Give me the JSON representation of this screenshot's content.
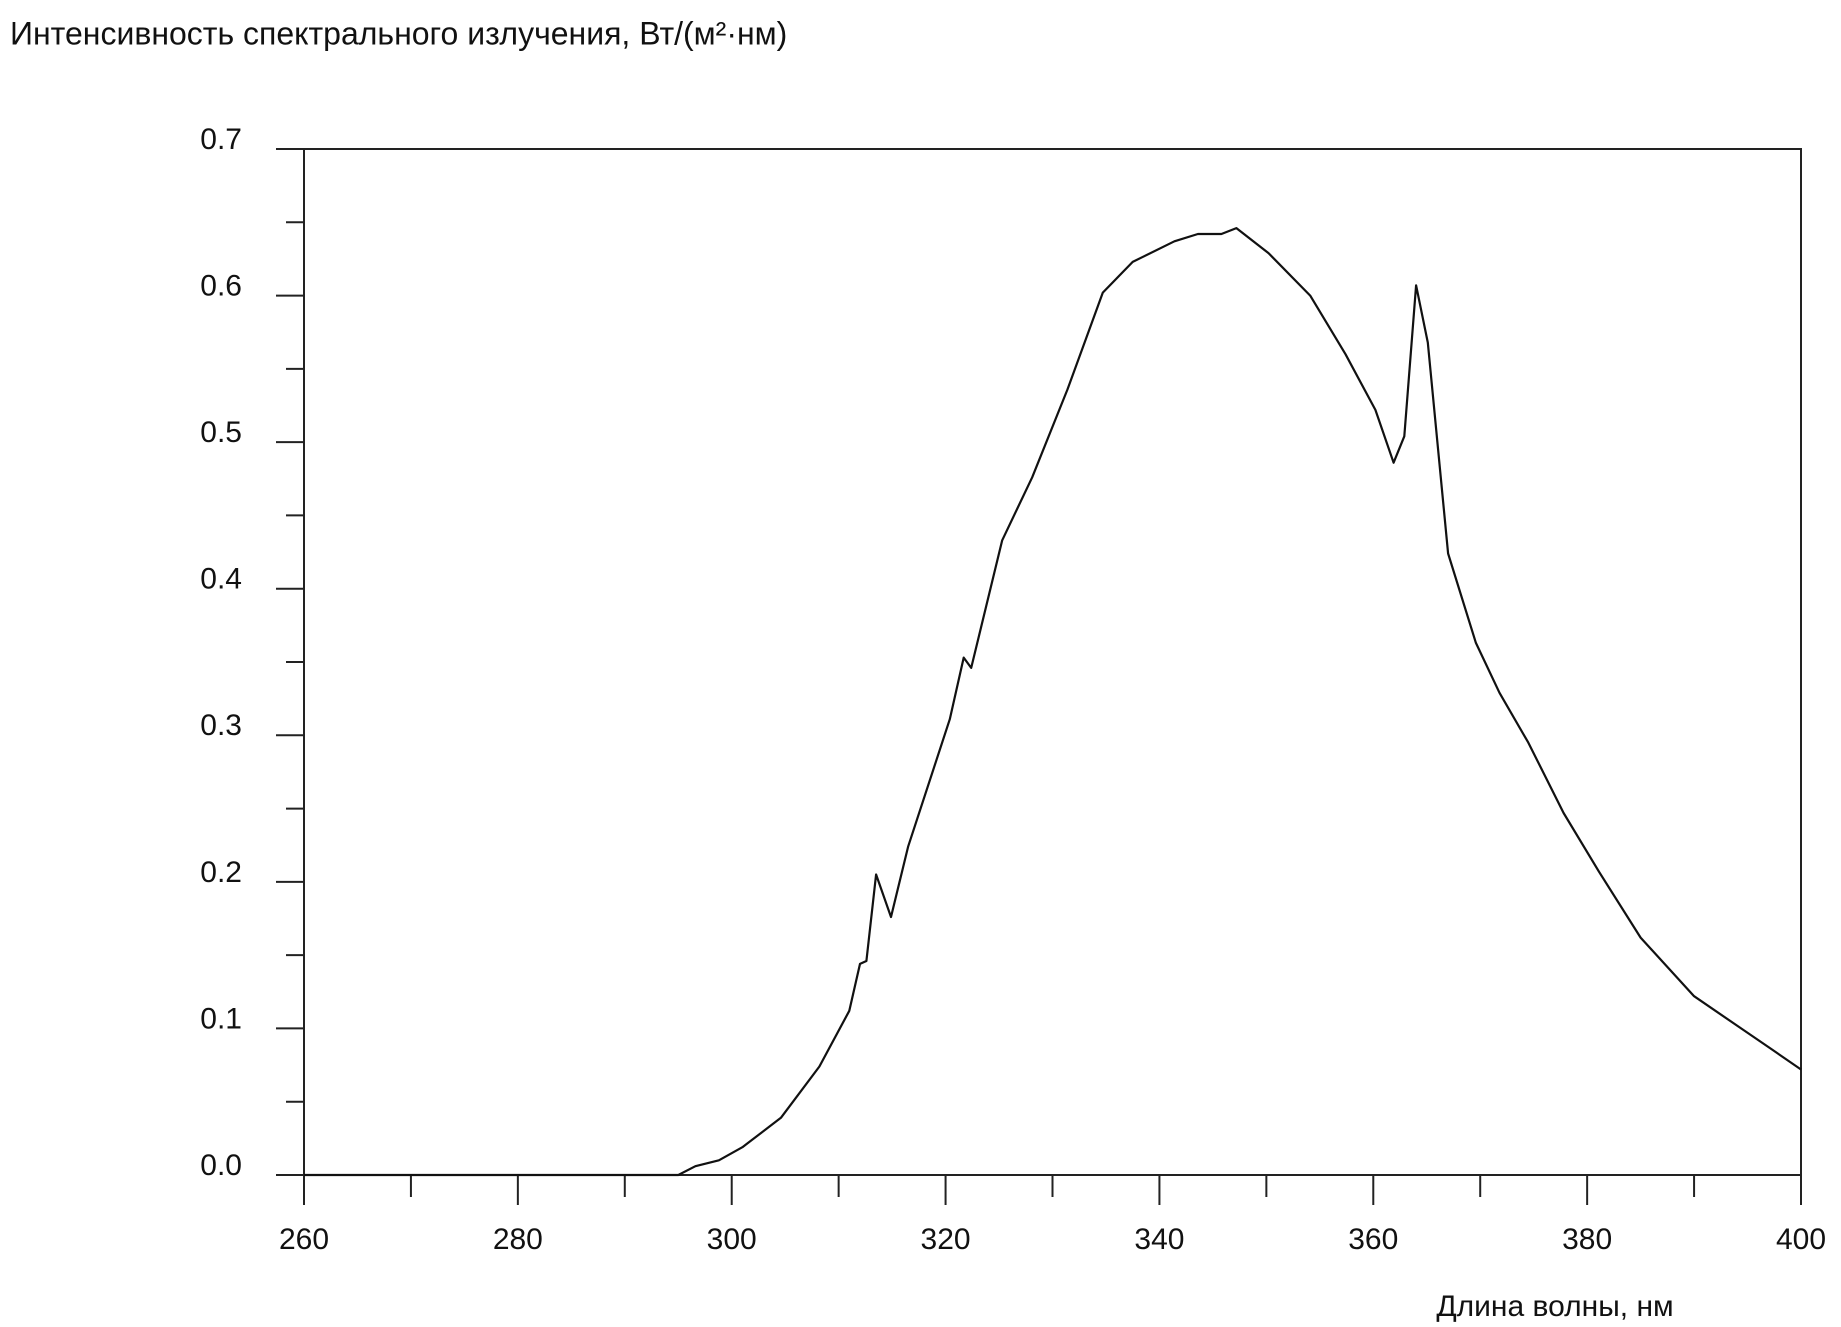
{
  "chart_data": {
    "type": "line",
    "title": "Интенсивность спектрального излучения, Вт/(м²·нм)",
    "x_label": "Длина волны, нм",
    "x": [
      260,
      295,
      296.6,
      298.8,
      301,
      304.6,
      308.2,
      311,
      312,
      312.6,
      313.5,
      314.9,
      316.5,
      320.4,
      321.7,
      322.4,
      325.3,
      328.1,
      331.4,
      334.7,
      337.5,
      341.4,
      343.6,
      345.8,
      347.2,
      350.2,
      354.1,
      357.4,
      360.2,
      361.9,
      362.9,
      364,
      365.1,
      367,
      369.6,
      371.8,
      374.5,
      377.8,
      381.1,
      385,
      390,
      394.4,
      397.2,
      400
    ],
    "series": [
      {
        "color": "#111111",
        "values": [
          0,
          0,
          0.006,
          0.01,
          0.019,
          0.039,
          0.074,
          0.112,
          0.144,
          0.146,
          0.205,
          0.176,
          0.224,
          0.311,
          0.353,
          0.346,
          0.433,
          0.476,
          0.536,
          0.602,
          0.623,
          0.637,
          0.642,
          0.642,
          0.646,
          0.629,
          0.6,
          0.56,
          0.522,
          0.486,
          0.504,
          0.607,
          0.568,
          0.424,
          0.363,
          0.329,
          0.295,
          0.247,
          0.207,
          0.162,
          0.122,
          0.1,
          0.086,
          0.072
        ]
      }
    ],
    "xlim": [
      260,
      400
    ],
    "xticks": [
      260,
      280,
      300,
      320,
      340,
      360,
      380,
      400
    ],
    "xminorticks": [
      270,
      290,
      310,
      330,
      350,
      370,
      390
    ],
    "ylim": [
      0,
      0.7
    ],
    "yticks": [
      {
        "value": 0,
        "label": "0.0"
      },
      0.1,
      0.2,
      0.3,
      0.4,
      0.5,
      0.6,
      0.7
    ],
    "yminorticks": [
      0.05,
      0.15,
      0.25,
      0.35,
      0.45,
      0.55,
      0.65
    ],
    "grid": false
  }
}
